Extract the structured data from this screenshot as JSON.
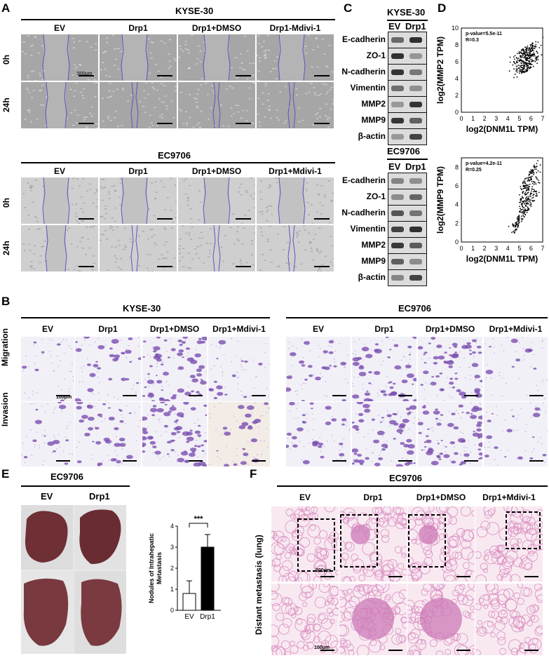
{
  "panels": {
    "A": "A",
    "B": "B",
    "C": "C",
    "D": "D",
    "E": "E",
    "F": "F"
  },
  "panelA": {
    "kyse_title": "KYSE-30",
    "ec_title": "EC9706",
    "kyse_cols": [
      "EV",
      "Drp1",
      "Drp1+DMSO",
      "Drp1-Mdivi-1"
    ],
    "ec_cols": [
      "EV",
      "Drp1",
      "Drp1+DMSO",
      "Drp1+Mdivi-1"
    ],
    "rows": [
      "0h",
      "24h"
    ],
    "scale_label": "500μm"
  },
  "panelB": {
    "kyse_title": "KYSE-30",
    "ec_title": "EC9706",
    "cols": [
      "EV",
      "Drp1",
      "Drp1+DMSO",
      "Drp1+Mdivi-1"
    ],
    "rows": [
      "Migration",
      "Invasion"
    ],
    "scale_label": "100μm"
  },
  "panelC": {
    "kyse_title": "KYSE-30",
    "ec_title": "EC9706",
    "lanes": [
      "EV",
      "Drp1"
    ],
    "proteins": [
      "E-cadherin",
      "ZO-1",
      "N-cadherin",
      "Vimentin",
      "MMP2",
      "MMP9",
      "β-actin"
    ]
  },
  "panelD": {
    "top": {
      "ylabel": "log2(MMP2 TPM)",
      "xlabel": "log2(DNM1L TPM)",
      "pvalue": "p-value=5.5e-11",
      "r": "R=0.3",
      "yticks": [
        "0",
        "2",
        "4",
        "6",
        "8",
        "10"
      ],
      "xticks": [
        "0",
        "1",
        "2",
        "3",
        "4",
        "5",
        "6",
        "7"
      ]
    },
    "bottom": {
      "ylabel": "log2(MMP9 TPM)",
      "xlabel": "log2(DNM1L TPM)",
      "pvalue": "p-value=4.2e-11",
      "r": "R=0.25",
      "yticks": [
        "0",
        "2",
        "4",
        "6",
        "8"
      ],
      "xticks": [
        "0",
        "1",
        "2",
        "3",
        "4",
        "5",
        "6",
        "7"
      ]
    }
  },
  "panelE": {
    "title": "EC9706",
    "cols": [
      "EV",
      "Drp1"
    ],
    "chart_data": {
      "type": "bar",
      "categories": [
        "EV",
        "Drp1"
      ],
      "values": [
        0.8,
        3.0
      ],
      "errors": [
        0.6,
        0.6
      ],
      "ylabel": "Nodules of Intrahepatic Metastasis",
      "ylim": [
        0,
        4
      ],
      "yticks": [
        "0",
        "1",
        "2",
        "3",
        "4"
      ],
      "significance": "***"
    }
  },
  "panelF": {
    "title": "EC9706",
    "cols": [
      "EV",
      "Drp1",
      "Drp1+DMSO",
      "Drp1+Mdivi-1"
    ],
    "rowlabel": "Distant metastasis (lung)",
    "scale_top": "200μm",
    "scale_bottom": "100μm"
  },
  "colors": {
    "scratch_bg": "#9a9a9a",
    "crystal": "#7a4fb0",
    "he_pink": "#e9a8cc",
    "liver": "#7a3a3e"
  }
}
